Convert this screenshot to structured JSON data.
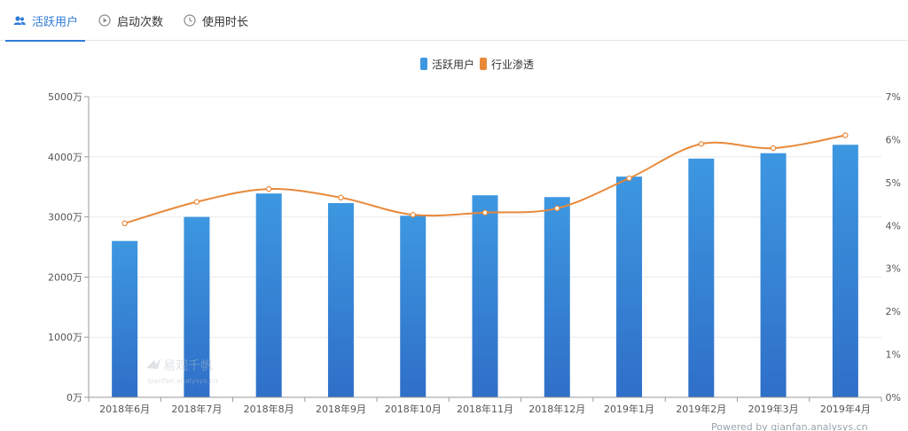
{
  "tabs": [
    {
      "label": "活跃用户",
      "icon": "users-icon",
      "active": true
    },
    {
      "label": "启动次数",
      "icon": "play-circle-icon",
      "active": false
    },
    {
      "label": "使用时长",
      "icon": "clock-icon",
      "active": false
    }
  ],
  "colors": {
    "bar_top": "#3d97e0",
    "bar_bottom": "#2f6fc8",
    "line": "#e8893a",
    "accent": "#2f7bd6"
  },
  "watermark": {
    "brand": "易观千帆",
    "url": "qianfan.analysys.cn"
  },
  "footer": "Powered by qianfan.analysys.cn",
  "chart_data": {
    "type": "bar",
    "categories": [
      "2018年6月",
      "2018年7月",
      "2018年8月",
      "2018年9月",
      "2018年10月",
      "2018年11月",
      "2018年12月",
      "2019年1月",
      "2019年2月",
      "2019年3月",
      "2019年4月"
    ],
    "series": [
      {
        "name": "活跃用户",
        "type": "bar",
        "axis": "left",
        "values": [
          2600,
          3000,
          3390,
          3230,
          3020,
          3360,
          3330,
          3670,
          3970,
          4060,
          4200
        ]
      },
      {
        "name": "行业渗透",
        "type": "line",
        "axis": "right",
        "values": [
          4.05,
          4.55,
          4.85,
          4.65,
          4.25,
          4.3,
          4.4,
          5.1,
          5.9,
          5.8,
          6.1
        ]
      }
    ],
    "y_left": {
      "min": 0,
      "max": 5000,
      "ticks": [
        "0万",
        "1000万",
        "2000万",
        "3000万",
        "4000万",
        "5000万"
      ]
    },
    "y_right": {
      "min": 0,
      "max": 7,
      "ticks": [
        "0%",
        "1%",
        "2%",
        "3%",
        "4%",
        "5%",
        "6%",
        "7%"
      ]
    },
    "legend_position": "top-center",
    "grid": true
  }
}
